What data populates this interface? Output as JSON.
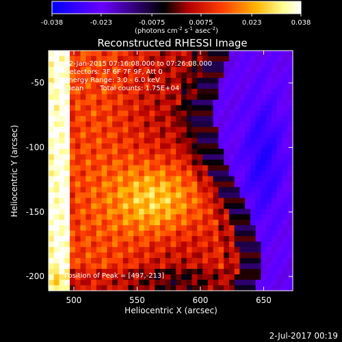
{
  "chart_data": {
    "type": "heatmap",
    "title": "Reconstructed RHESSI Image",
    "xlabel": "Heliocentric X (arcsec)",
    "ylabel": "Heliocentric Y (arcsec)",
    "xlim": [
      480,
      673
    ],
    "ylim": [
      -211,
      -25
    ],
    "xticks": [
      500,
      550,
      600,
      650
    ],
    "yticks": [
      -50,
      -100,
      -150,
      -200
    ],
    "colorbar": {
      "min": -0.038,
      "max": 0.038,
      "ticks": [
        "-0.038",
        "-0.023",
        "-0.0075",
        "0.0075",
        "0.023",
        "0.038"
      ],
      "tick_values": [
        -0.038,
        -0.023,
        -0.0075,
        0.0075,
        0.023,
        0.038
      ],
      "unit_label": {
        "base": "(photons cm",
        "exp1": "-2",
        "mid1": " s",
        "exp2": "-1",
        "mid2": " asec",
        "exp3": "-2",
        "end": ")"
      },
      "colors": [
        "#0000ff",
        "#6a00ff",
        "#000000",
        "#b40000",
        "#ff3c00",
        "#ffb400",
        "#ffff96",
        "#ffffff"
      ]
    },
    "annotations": {
      "time_range": "2-Jan-2015 07:16:08.000 to 07:26:08.000",
      "detectors": "Detectors: 3F 6F 7F 9F, Att 0",
      "energy": "Energy Range: 3.0 - 6.0 keV",
      "clean": "Clean",
      "counts": "Total counts: 1.75E+04",
      "peak": "Position of Peak = [497,-213]"
    },
    "peak": [
      497,
      -213
    ],
    "grid": false
  },
  "footer": {
    "timestamp": "2-Jul-2017 00:19"
  }
}
